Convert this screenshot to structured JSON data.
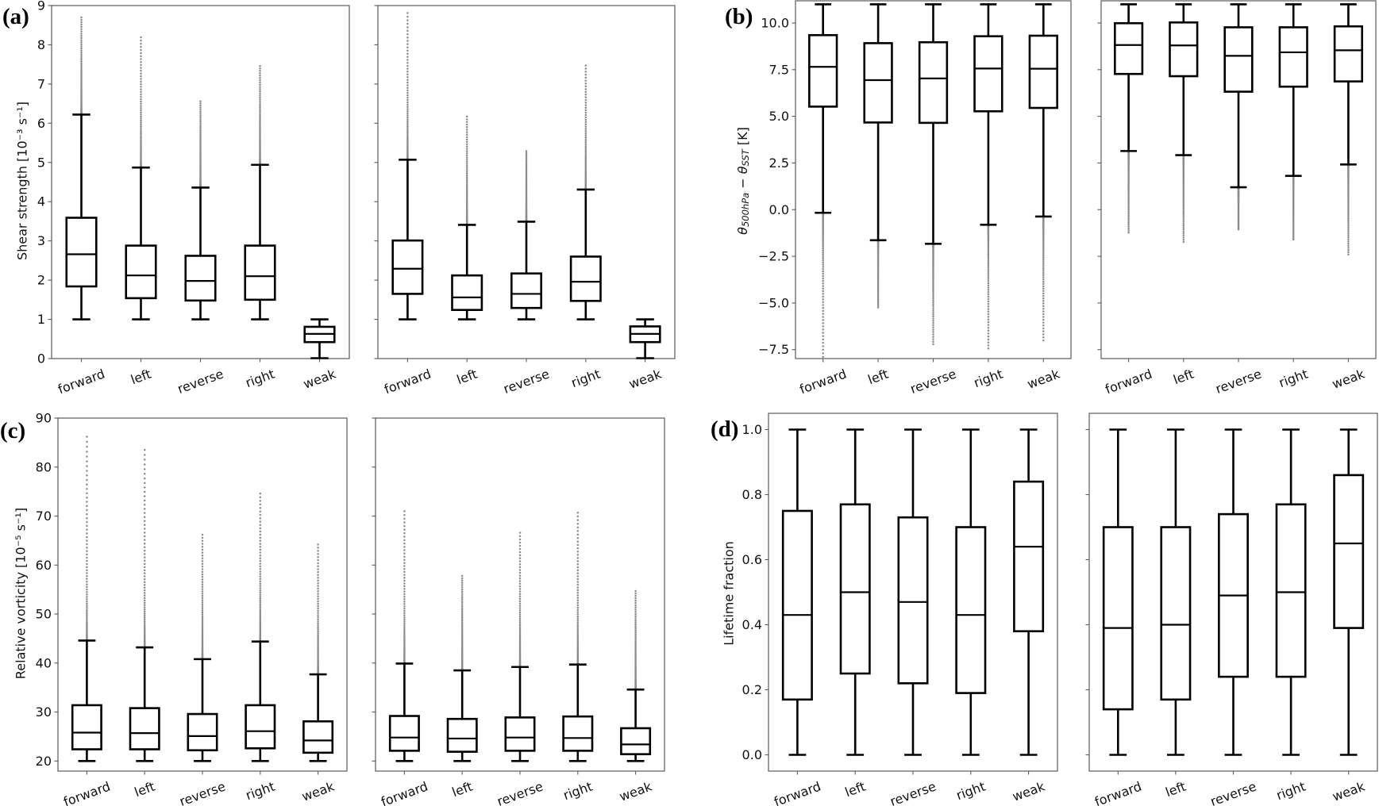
{
  "chart_data": [
    {
      "type": "box",
      "label": "(a)",
      "ylabel": "Shear strength [10⁻³ s⁻¹]",
      "ylim": [
        0,
        9
      ],
      "yticks": [
        0,
        1,
        2,
        3,
        4,
        5,
        6,
        7,
        8,
        9
      ],
      "ytick_labels": [
        "0",
        "1",
        "2",
        "3",
        "4",
        "5",
        "6",
        "7",
        "8",
        "9"
      ],
      "categories": [
        "forward",
        "left",
        "reverse",
        "right",
        "weak"
      ],
      "subplots": [
        {
          "boxes": [
            {
              "whisker_low": 1.0,
              "q1": 1.84,
              "median": 2.66,
              "q3": 3.59,
              "whisker_high": 6.22,
              "flier_extreme": 8.7
            },
            {
              "whisker_low": 1.0,
              "q1": 1.54,
              "median": 2.12,
              "q3": 2.88,
              "whisker_high": 4.87,
              "flier_extreme": 8.19
            },
            {
              "whisker_low": 1.0,
              "q1": 1.48,
              "median": 1.98,
              "q3": 2.62,
              "whisker_high": 4.36,
              "flier_extreme": 6.56
            },
            {
              "whisker_low": 1.0,
              "q1": 1.5,
              "median": 2.1,
              "q3": 2.88,
              "whisker_high": 4.94,
              "flier_extreme": 7.46
            },
            {
              "whisker_low": 0.01,
              "q1": 0.42,
              "median": 0.63,
              "q3": 0.81,
              "whisker_high": 1.0,
              "flier_extreme": null
            }
          ]
        },
        {
          "boxes": [
            {
              "whisker_low": 1.0,
              "q1": 1.65,
              "median": 2.29,
              "q3": 3.01,
              "whisker_high": 5.07,
              "flier_extreme": 8.81
            },
            {
              "whisker_low": 1.0,
              "q1": 1.24,
              "median": 1.56,
              "q3": 2.12,
              "whisker_high": 3.41,
              "flier_extreme": 6.17
            },
            {
              "whisker_low": 1.0,
              "q1": 1.29,
              "median": 1.65,
              "q3": 2.17,
              "whisker_high": 3.49,
              "flier_extreme": 5.29
            },
            {
              "whisker_low": 1.0,
              "q1": 1.47,
              "median": 1.96,
              "q3": 2.6,
              "whisker_high": 4.31,
              "flier_extreme": 7.47
            },
            {
              "whisker_low": 0.01,
              "q1": 0.42,
              "median": 0.63,
              "q3": 0.82,
              "whisker_high": 1.0,
              "flier_extreme": null
            }
          ]
        }
      ]
    },
    {
      "type": "box",
      "label": "(b)",
      "ylabel_parts": {
        "symbol1": "θ",
        "sub1": "500hPa",
        "operator": " − ",
        "symbol2": "θ",
        "sub2": "SST",
        "unit": " [K]"
      },
      "ylim": [
        -7.98,
        11.19
      ],
      "yticks": [
        -7.5,
        -5.0,
        -2.5,
        0.0,
        2.5,
        5.0,
        7.5,
        10.0
      ],
      "ytick_labels": [
        "−7.5",
        "−5.0",
        "−2.5",
        "0.0",
        "2.5",
        "5.0",
        "7.5",
        "10.0"
      ],
      "categories": [
        "forward",
        "left",
        "reverse",
        "right",
        "weak"
      ],
      "subplots": [
        {
          "boxes": [
            {
              "whisker_low": -0.17,
              "q1": 5.52,
              "median": 7.65,
              "q3": 9.35,
              "whisker_high": 11.0,
              "flier_extreme": -7.89
            },
            {
              "whisker_low": -1.64,
              "q1": 4.67,
              "median": 6.94,
              "q3": 8.92,
              "whisker_high": 11.0,
              "flier_extreme": -5.24
            },
            {
              "whisker_low": -1.83,
              "q1": 4.65,
              "median": 7.03,
              "q3": 8.97,
              "whisker_high": 11.0,
              "flier_extreme": -7.21
            },
            {
              "whisker_low": -0.81,
              "q1": 5.27,
              "median": 7.56,
              "q3": 9.29,
              "whisker_high": 11.0,
              "flier_extreme": -7.44
            },
            {
              "whisker_low": -0.37,
              "q1": 5.45,
              "median": 7.55,
              "q3": 9.32,
              "whisker_high": 11.0,
              "flier_extreme": -7.01
            }
          ]
        },
        {
          "boxes": [
            {
              "whisker_low": 3.14,
              "q1": 7.27,
              "median": 8.82,
              "q3": 9.99,
              "whisker_high": 11.0,
              "flier_extreme": -1.23
            },
            {
              "whisker_low": 2.92,
              "q1": 7.15,
              "median": 8.8,
              "q3": 10.03,
              "whisker_high": 11.0,
              "flier_extreme": -1.73
            },
            {
              "whisker_low": 1.2,
              "q1": 6.32,
              "median": 8.24,
              "q3": 9.77,
              "whisker_high": 11.0,
              "flier_extreme": -1.06
            },
            {
              "whisker_low": 1.81,
              "q1": 6.59,
              "median": 8.43,
              "q3": 9.77,
              "whisker_high": 11.0,
              "flier_extreme": -1.6
            },
            {
              "whisker_low": 2.42,
              "q1": 6.87,
              "median": 8.54,
              "q3": 9.82,
              "whisker_high": 11.0,
              "flier_extreme": -2.4
            }
          ]
        }
      ]
    },
    {
      "type": "box",
      "label": "(c)",
      "ylabel": "Relative vorticity [10⁻⁵ s⁻¹]",
      "ylim": [
        17.95,
        90
      ],
      "yticks": [
        20,
        30,
        40,
        50,
        60,
        70,
        80,
        90
      ],
      "ytick_labels": [
        "20",
        "30",
        "40",
        "50",
        "60",
        "70",
        "80",
        "90"
      ],
      "categories": [
        "forward",
        "left",
        "reverse",
        "right",
        "weak"
      ],
      "subplots": [
        {
          "boxes": [
            {
              "whisker_low": 20,
              "q1": 22.4,
              "median": 25.8,
              "q3": 31.4,
              "whisker_high": 44.6,
              "flier_extreme": 86.2
            },
            {
              "whisker_low": 20,
              "q1": 22.4,
              "median": 25.7,
              "q3": 30.8,
              "whisker_high": 43.2,
              "flier_extreme": 83.5
            },
            {
              "whisker_low": 20,
              "q1": 22.2,
              "median": 25.1,
              "q3": 29.6,
              "whisker_high": 40.8,
              "flier_extreme": 66.2
            },
            {
              "whisker_low": 20,
              "q1": 22.6,
              "median": 26.1,
              "q3": 31.4,
              "whisker_high": 44.4,
              "flier_extreme": 74.6
            },
            {
              "whisker_low": 20,
              "q1": 21.7,
              "median": 24.2,
              "q3": 28.1,
              "whisker_high": 37.7,
              "flier_extreme": 64.2
            }
          ]
        },
        {
          "boxes": [
            {
              "whisker_low": 20,
              "q1": 22.1,
              "median": 24.8,
              "q3": 29.2,
              "whisker_high": 39.9,
              "flier_extreme": 71.0
            },
            {
              "whisker_low": 20,
              "q1": 21.9,
              "median": 24.6,
              "q3": 28.6,
              "whisker_high": 38.5,
              "flier_extreme": 57.8
            },
            {
              "whisker_low": 20,
              "q1": 22.1,
              "median": 24.8,
              "q3": 28.9,
              "whisker_high": 39.2,
              "flier_extreme": 66.6
            },
            {
              "whisker_low": 20,
              "q1": 22.1,
              "median": 24.7,
              "q3": 29.1,
              "whisker_high": 39.7,
              "flier_extreme": 70.7
            },
            {
              "whisker_low": 20,
              "q1": 21.4,
              "median": 23.4,
              "q3": 26.7,
              "whisker_high": 34.6,
              "flier_extreme": 54.7
            }
          ]
        }
      ]
    },
    {
      "type": "box",
      "label": "(d)",
      "ylabel": "Lifetime fraction",
      "ylim": [
        -0.05,
        1.05
      ],
      "yticks": [
        0.0,
        0.2,
        0.4,
        0.6,
        0.8,
        1.0
      ],
      "ytick_labels": [
        "0.0",
        "0.2",
        "0.4",
        "0.6",
        "0.8",
        "1.0"
      ],
      "categories": [
        "forward",
        "left",
        "reverse",
        "right",
        "weak"
      ],
      "subplots": [
        {
          "boxes": [
            {
              "whisker_low": 0.0,
              "q1": 0.17,
              "median": 0.43,
              "q3": 0.75,
              "whisker_high": 1.0,
              "flier_extreme": null
            },
            {
              "whisker_low": 0.0,
              "q1": 0.25,
              "median": 0.5,
              "q3": 0.77,
              "whisker_high": 1.0,
              "flier_extreme": null
            },
            {
              "whisker_low": 0.0,
              "q1": 0.22,
              "median": 0.47,
              "q3": 0.73,
              "whisker_high": 1.0,
              "flier_extreme": null
            },
            {
              "whisker_low": 0.0,
              "q1": 0.19,
              "median": 0.43,
              "q3": 0.7,
              "whisker_high": 1.0,
              "flier_extreme": null
            },
            {
              "whisker_low": 0.0,
              "q1": 0.38,
              "median": 0.64,
              "q3": 0.84,
              "whisker_high": 1.0,
              "flier_extreme": null
            }
          ]
        },
        {
          "boxes": [
            {
              "whisker_low": 0.0,
              "q1": 0.14,
              "median": 0.39,
              "q3": 0.7,
              "whisker_high": 1.0,
              "flier_extreme": null
            },
            {
              "whisker_low": 0.0,
              "q1": 0.17,
              "median": 0.4,
              "q3": 0.7,
              "whisker_high": 1.0,
              "flier_extreme": null
            },
            {
              "whisker_low": 0.0,
              "q1": 0.24,
              "median": 0.49,
              "q3": 0.74,
              "whisker_high": 1.0,
              "flier_extreme": null
            },
            {
              "whisker_low": 0.0,
              "q1": 0.24,
              "median": 0.5,
              "q3": 0.77,
              "whisker_high": 1.0,
              "flier_extreme": null
            },
            {
              "whisker_low": 0.0,
              "q1": 0.39,
              "median": 0.65,
              "q3": 0.86,
              "whisker_high": 1.0,
              "flier_extreme": null
            }
          ]
        }
      ]
    }
  ],
  "colors": {
    "box": "#000000",
    "outlier": "#8c8c8c",
    "frame": "#5a5a5a",
    "background": "#ffffff"
  }
}
